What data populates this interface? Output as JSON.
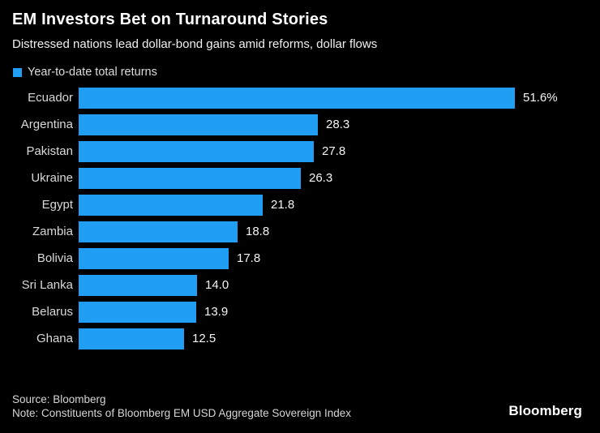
{
  "header": {
    "title": "EM Investors Bet on Turnaround Stories",
    "subtitle": "Distressed nations lead dollar-bond gains amid reforms, dollar flows"
  },
  "legend": {
    "label": "Year-to-date total returns",
    "swatch_color": "#1f9ef4"
  },
  "chart_data": {
    "type": "bar",
    "orientation": "horizontal",
    "title": "EM Investors Bet on Turnaround Stories",
    "subtitle": "Distressed nations lead dollar-bond gains amid reforms, dollar flows",
    "series_name": "Year-to-date total returns",
    "categories": [
      "Ecuador",
      "Argentina",
      "Pakistan",
      "Ukraine",
      "Egypt",
      "Zambia",
      "Bolivia",
      "Sri Lanka",
      "Belarus",
      "Ghana"
    ],
    "values": [
      51.6,
      28.3,
      27.8,
      26.3,
      21.8,
      18.8,
      17.8,
      14.0,
      13.9,
      12.5
    ],
    "value_labels": [
      "51.6%",
      "28.3",
      "27.8",
      "26.3",
      "21.8",
      "18.8",
      "17.8",
      "14.0",
      "13.9",
      "12.5"
    ],
    "unit": "percent",
    "bar_color": "#1f9ef4",
    "background_color": "#000000",
    "xlim": [
      0,
      59.5
    ],
    "grid": false,
    "legend_position": "top-left",
    "value_labels_shown": true
  },
  "footer": {
    "source": "Source: Bloomberg",
    "note": "Note: Constituents of Bloomberg EM USD Aggregate Sovereign Index",
    "logo": "Bloomberg"
  }
}
